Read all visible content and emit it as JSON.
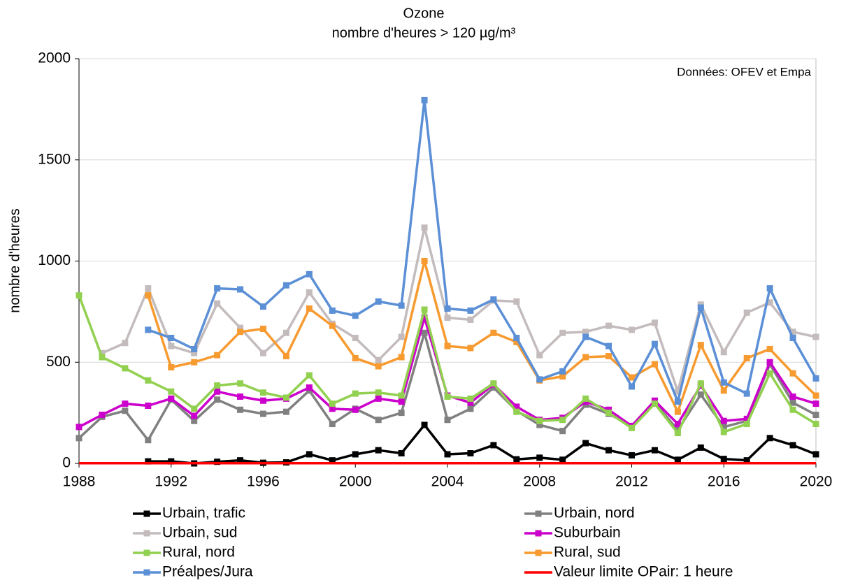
{
  "chart_data": {
    "type": "line",
    "title": "Ozone",
    "subtitle": "nombre d'heures > 120 µg/m³",
    "annotation": "Données: OFEV et Empa",
    "y_label": "nombre d'heures",
    "x": [
      1988,
      1989,
      1990,
      1991,
      1992,
      1993,
      1994,
      1995,
      1996,
      1997,
      1998,
      1999,
      2000,
      2001,
      2002,
      2003,
      2004,
      2005,
      2006,
      2007,
      2008,
      2009,
      2010,
      2011,
      2012,
      2013,
      2014,
      2015,
      2016,
      2017,
      2018,
      2019,
      2020
    ],
    "xlim": [
      1988,
      2020
    ],
    "xticks": [
      1988,
      1992,
      1996,
      2000,
      2004,
      2008,
      2012,
      2016,
      2020
    ],
    "ylim": [
      0,
      2000
    ],
    "yticks": [
      0,
      500,
      1000,
      1500,
      2000
    ],
    "grid": true,
    "series": [
      {
        "name": "Urbain, trafic",
        "color": "#000000",
        "markers": true,
        "values": [
          null,
          null,
          null,
          10,
          10,
          0,
          8,
          15,
          3,
          5,
          45,
          15,
          45,
          65,
          50,
          190,
          45,
          50,
          90,
          20,
          28,
          18,
          100,
          65,
          40,
          65,
          18,
          78,
          22,
          15,
          125,
          90,
          45
        ]
      },
      {
        "name": "Urbain, nord",
        "color": "#808080",
        "markers": true,
        "values": [
          125,
          230,
          260,
          115,
          315,
          210,
          315,
          265,
          245,
          255,
          360,
          195,
          270,
          215,
          250,
          645,
          215,
          270,
          375,
          260,
          190,
          160,
          290,
          245,
          185,
          300,
          165,
          340,
          180,
          210,
          490,
          300,
          240
        ]
      },
      {
        "name": "Urbain, sud",
        "color": "#c4bcbc",
        "markers": true,
        "values": [
          null,
          545,
          595,
          865,
          580,
          545,
          790,
          670,
          545,
          645,
          845,
          690,
          620,
          510,
          625,
          1165,
          720,
          710,
          805,
          800,
          535,
          645,
          650,
          680,
          660,
          695,
          355,
          785,
          550,
          745,
          795,
          650,
          625
        ]
      },
      {
        "name": "Suburbain",
        "color": "#cc00cc",
        "markers": true,
        "values": [
          180,
          240,
          295,
          285,
          320,
          235,
          355,
          330,
          310,
          320,
          375,
          270,
          265,
          320,
          305,
          720,
          335,
          300,
          390,
          280,
          215,
          225,
          305,
          265,
          185,
          310,
          195,
          385,
          210,
          220,
          500,
          330,
          295
        ]
      },
      {
        "name": "Rural, nord",
        "color": "#92d050",
        "markers": true,
        "values": [
          830,
          525,
          470,
          410,
          355,
          270,
          385,
          395,
          350,
          325,
          435,
          295,
          345,
          350,
          335,
          760,
          330,
          320,
          395,
          255,
          210,
          215,
          320,
          250,
          175,
          295,
          150,
          395,
          155,
          195,
          445,
          265,
          195
        ]
      },
      {
        "name": "Rural, sud",
        "color": "#f79a30",
        "markers": true,
        "values": [
          null,
          null,
          null,
          830,
          475,
          500,
          535,
          650,
          665,
          530,
          765,
          680,
          520,
          480,
          525,
          1000,
          580,
          570,
          645,
          600,
          410,
          430,
          525,
          530,
          425,
          490,
          255,
          585,
          360,
          520,
          565,
          445,
          335
        ]
      },
      {
        "name": "Préalpes/Jura",
        "color": "#5b8fd6",
        "markers": true,
        "values": [
          null,
          null,
          null,
          660,
          620,
          565,
          865,
          860,
          775,
          880,
          935,
          755,
          730,
          800,
          780,
          1795,
          765,
          755,
          810,
          620,
          415,
          455,
          625,
          580,
          380,
          590,
          305,
          770,
          400,
          345,
          865,
          620,
          420
        ]
      },
      {
        "name": "Valeur limite OPair: 1 heure",
        "color": "#ff0000",
        "markers": false,
        "values": [
          1,
          1,
          1,
          1,
          1,
          1,
          1,
          1,
          1,
          1,
          1,
          1,
          1,
          1,
          1,
          1,
          1,
          1,
          1,
          1,
          1,
          1,
          1,
          1,
          1,
          1,
          1,
          1,
          1,
          1,
          1,
          1,
          1
        ]
      }
    ]
  }
}
